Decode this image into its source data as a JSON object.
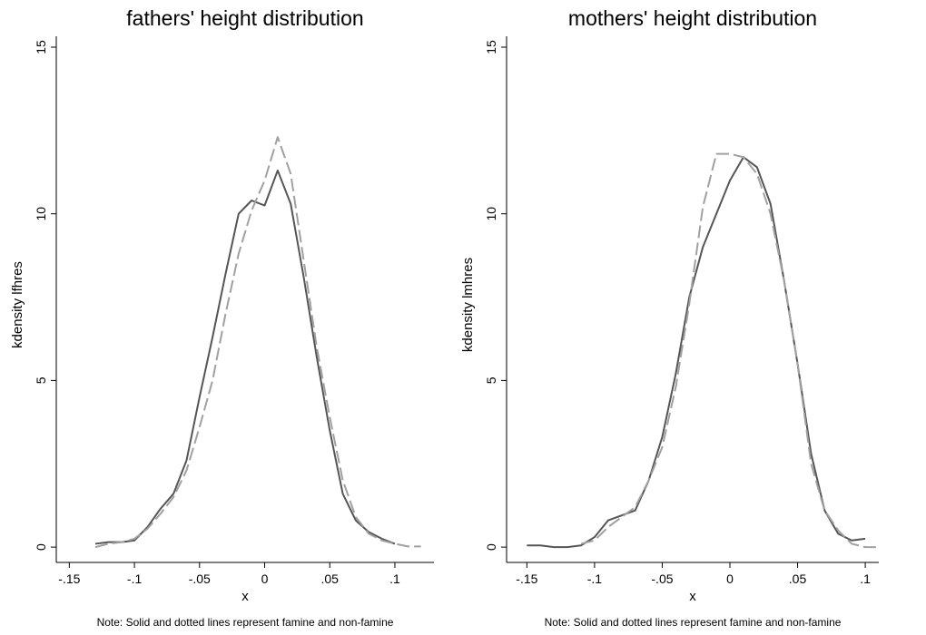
{
  "chart_data": [
    {
      "type": "line",
      "title": "fathers' height distribution",
      "x_label": "x",
      "y_label": "kdensity lfhres",
      "note": "Note: Solid and dotted lines represent famine and non-famine",
      "x": [
        -0.15,
        -0.14,
        -0.13,
        -0.12,
        -0.11,
        -0.1,
        -0.09,
        -0.08,
        -0.07,
        -0.06,
        -0.05,
        -0.04,
        -0.03,
        -0.02,
        -0.01,
        0,
        0.01,
        0.02,
        0.03,
        0.04,
        0.05,
        0.06,
        0.07,
        0.08,
        0.09,
        0.1,
        0.11,
        0.12
      ],
      "series": [
        {
          "color": "#555555",
          "line_style": "solid",
          "values": [
            null,
            null,
            0.1,
            0.15,
            0.15,
            0.2,
            0.6,
            1.15,
            1.6,
            2.6,
            4.5,
            6.3,
            8.2,
            10.0,
            10.4,
            10.25,
            11.3,
            10.3,
            8.1,
            5.7,
            3.5,
            1.6,
            0.8,
            0.45,
            0.25,
            0.1,
            null,
            null
          ]
        },
        {
          "color": "#a0a0a0",
          "line_style": "dashed",
          "values": [
            null,
            null,
            0.0,
            0.1,
            0.15,
            0.25,
            0.55,
            1.0,
            1.5,
            2.3,
            3.6,
            5.0,
            7.0,
            8.8,
            10.1,
            11.0,
            12.3,
            11.2,
            8.6,
            6.0,
            3.9,
            2.0,
            0.9,
            0.4,
            0.2,
            0.1,
            0.02,
            0.02
          ]
        }
      ],
      "xlim": [
        -0.16,
        0.13
      ],
      "xticks": [
        {
          "value": -0.15,
          "label": "-.15"
        },
        {
          "value": -0.1,
          "label": "-.1"
        },
        {
          "value": -0.05,
          "label": "-.05"
        },
        0,
        {
          "value": 0.05,
          "label": ".05"
        },
        {
          "value": 0.1,
          "label": ".1"
        }
      ],
      "ylim": [
        -0.46,
        15
      ],
      "yticks": [
        0,
        5,
        10,
        15
      ]
    },
    {
      "type": "line",
      "title": "mothers' height distribution",
      "x_label": "x",
      "y_label": "kdensity lmhres",
      "note": "Note: Solid and dotted lines represent famine and non-famine",
      "x": [
        -0.15,
        -0.14,
        -0.13,
        -0.12,
        -0.11,
        -0.1,
        -0.09,
        -0.08,
        -0.07,
        -0.06,
        -0.05,
        -0.04,
        -0.03,
        -0.02,
        -0.01,
        0,
        0.01,
        0.02,
        0.03,
        0.04,
        0.05,
        0.06,
        0.07,
        0.08,
        0.09,
        0.1,
        0.11,
        0.12
      ],
      "series": [
        {
          "color": "#555555",
          "line_style": "solid",
          "values": [
            0.05,
            0.05,
            0.0,
            0.0,
            0.05,
            0.3,
            0.8,
            0.95,
            1.1,
            2.0,
            3.3,
            5.2,
            7.5,
            9.0,
            10.0,
            11.0,
            11.7,
            11.4,
            10.3,
            8.0,
            5.5,
            2.8,
            1.1,
            0.4,
            0.2,
            0.25,
            null,
            null
          ]
        },
        {
          "color": "#a0a0a0",
          "line_style": "dashed",
          "values": [
            null,
            null,
            null,
            null,
            0.1,
            0.2,
            0.6,
            0.9,
            1.2,
            2.0,
            3.0,
            4.8,
            7.3,
            10.2,
            11.8,
            11.8,
            11.7,
            11.2,
            10.0,
            8.0,
            5.5,
            2.5,
            1.1,
            0.5,
            0.1,
            0.0,
            0.0,
            null
          ]
        }
      ],
      "xlim": [
        -0.165,
        0.11
      ],
      "xticks": [
        {
          "value": -0.15,
          "label": "-.15"
        },
        {
          "value": -0.1,
          "label": "-.1"
        },
        {
          "value": -0.05,
          "label": "-.05"
        },
        0,
        {
          "value": 0.05,
          "label": ".05"
        },
        {
          "value": 0.1,
          "label": ".1"
        }
      ],
      "ylim": [
        -0.46,
        15
      ],
      "yticks": [
        0,
        5,
        10,
        15
      ]
    }
  ]
}
